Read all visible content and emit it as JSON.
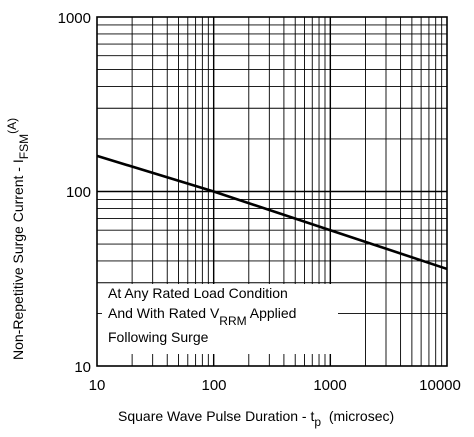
{
  "chart_data": {
    "type": "line",
    "x_scale": "log",
    "y_scale": "log",
    "xlim": [
      10,
      10000
    ],
    "ylim": [
      10,
      1000
    ],
    "x_ticks": [
      "10",
      "100",
      "1000",
      "10000"
    ],
    "y_ticks": [
      "10",
      "100",
      "1000"
    ],
    "grid": true,
    "xlabel": {
      "main": "Square Wave Pulse Duration - t",
      "sub": "p",
      "tail": "  (microsec)"
    },
    "ylabel": {
      "main": "Non-Repetitive Surge Current - I",
      "sub": "FSM",
      "sup": "(A)"
    },
    "annotation": {
      "line1": "At Any Rated Load Condition",
      "line2_main": "And With Rated V",
      "line2_sub": "RRM",
      "line2_tail": " Applied",
      "line3": "Following Surge"
    },
    "series": [
      {
        "x": [
          10,
          100,
          1000,
          10000
        ],
        "y": [
          160,
          100,
          60,
          36
        ]
      }
    ],
    "line_color": "#000000"
  }
}
